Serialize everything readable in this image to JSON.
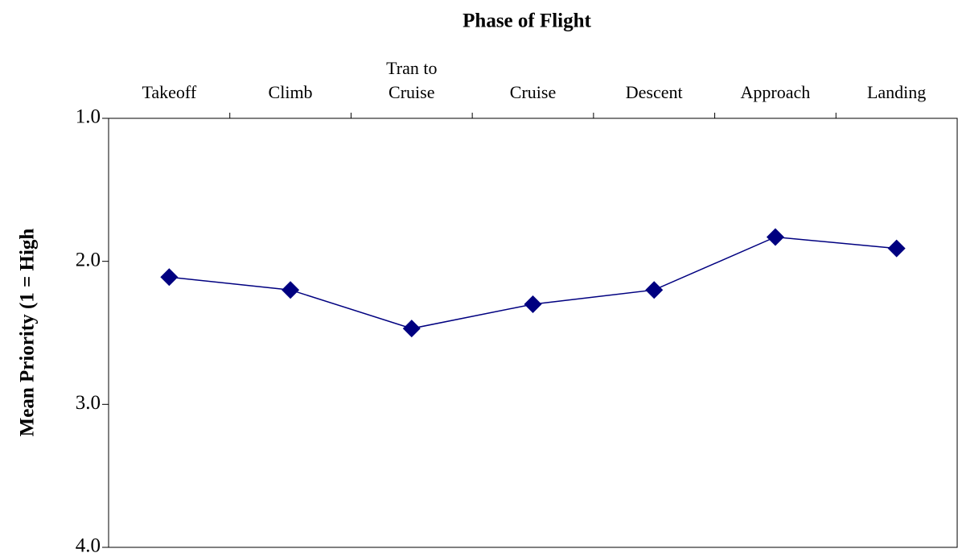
{
  "chart_data": {
    "type": "line",
    "title": "Phase of Flight",
    "y_label": "Mean Priority (1 = High",
    "categories": [
      "Takeoff",
      "Climb",
      "Tran to Cruise",
      "Cruise",
      "Descent",
      "Approach",
      "Landing"
    ],
    "series": [
      {
        "name": "Mean Priority",
        "color": "#000080",
        "values": [
          2.11,
          2.2,
          2.47,
          2.3,
          2.2,
          1.83,
          1.91
        ]
      }
    ],
    "ylim": [
      1,
      4
    ],
    "y_inverted": true,
    "yticks": [
      {
        "value": 1,
        "label": "1.0"
      },
      {
        "value": 2,
        "label": "2.0"
      },
      {
        "value": 3,
        "label": "3.0"
      },
      {
        "value": 4,
        "label": "4.0"
      }
    ],
    "grid": false
  }
}
